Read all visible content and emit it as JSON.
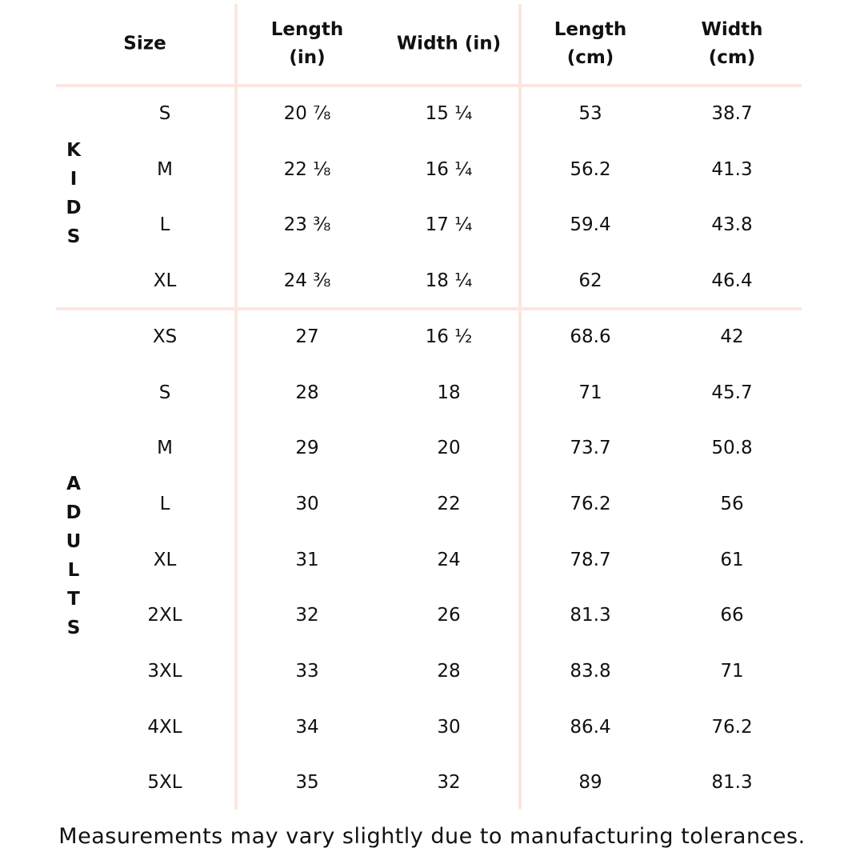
{
  "table": {
    "headers": [
      [
        "Size"
      ],
      [
        "Length",
        "(in)"
      ],
      [
        "Width (in)"
      ],
      [
        "Length",
        "(cm)"
      ],
      [
        "Width",
        "(cm)"
      ]
    ],
    "groups": [
      {
        "label": "KIDS",
        "rows": [
          [
            "S",
            "20 ⅞",
            "15 ¼",
            "53",
            "38.7"
          ],
          [
            "M",
            "22 ⅛",
            "16 ¼",
            "56.2",
            "41.3"
          ],
          [
            "L",
            "23 ⅜",
            "17 ¼",
            "59.4",
            "43.8"
          ],
          [
            "XL",
            "24 ⅜",
            "18 ¼",
            "62",
            "46.4"
          ]
        ]
      },
      {
        "label": "ADULTS",
        "rows": [
          [
            "XS",
            "27",
            "16 ½",
            "68.6",
            "42"
          ],
          [
            "S",
            "28",
            "18",
            "71",
            "45.7"
          ],
          [
            "M",
            "29",
            "20",
            "73.7",
            "50.8"
          ],
          [
            "L",
            "30",
            "22",
            "76.2",
            "56"
          ],
          [
            "XL",
            "31",
            "24",
            "78.7",
            "61"
          ],
          [
            "2XL",
            "32",
            "26",
            "81.3",
            "66"
          ],
          [
            "3XL",
            "33",
            "28",
            "83.8",
            "71"
          ],
          [
            "4XL",
            "34",
            "30",
            "86.4",
            "76.2"
          ],
          [
            "5XL",
            "35",
            "32",
            "89",
            "81.3"
          ]
        ]
      }
    ]
  },
  "footer": "Measurements may vary slightly due to manufacturing tolerances."
}
